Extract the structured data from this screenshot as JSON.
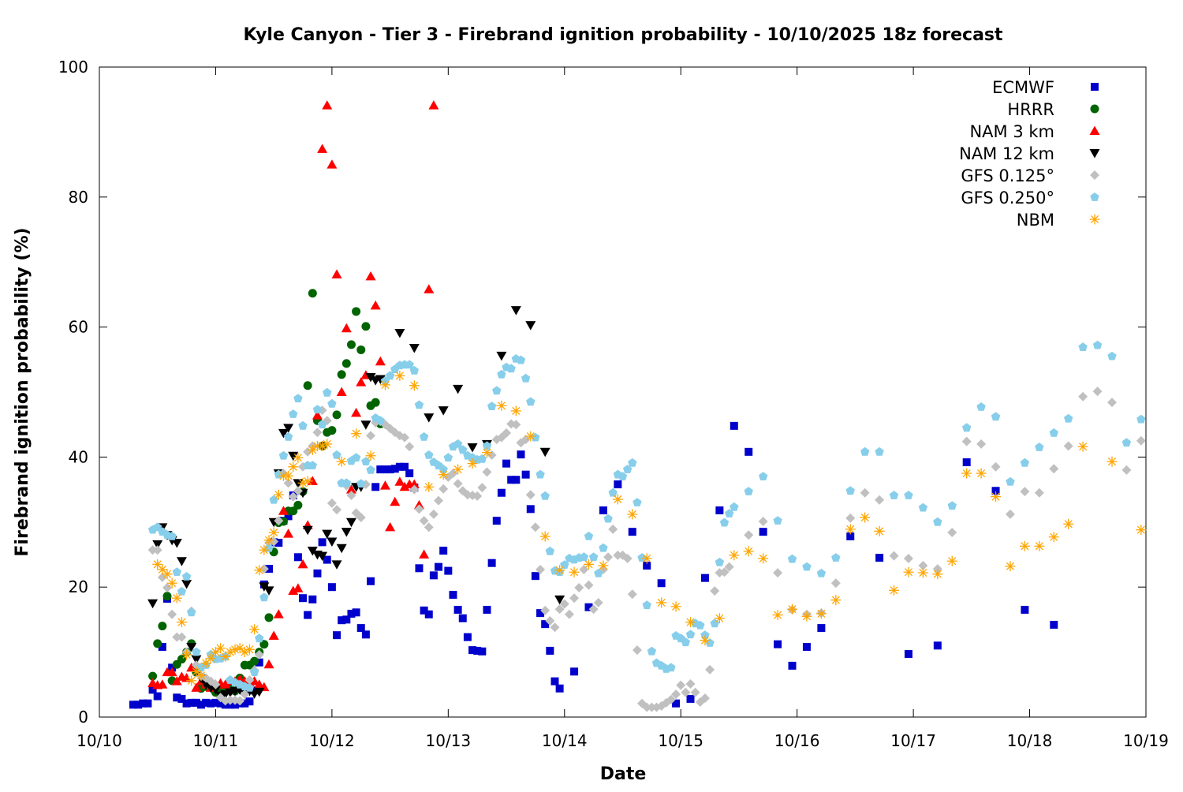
{
  "chart_data": {
    "type": "scatter",
    "title": "Kyle Canyon - Tier 3 - Firebrand ignition probability - 10/10/2025 18z forecast",
    "xlabel": "Date",
    "ylabel": "Firebrand ignition probability (%)",
    "x_units": "hours since 10/10 00",
    "xlim": [
      0,
      216
    ],
    "ylim": [
      0,
      100
    ],
    "x_ticks": [
      {
        "h": 0,
        "label": "10/10"
      },
      {
        "h": 24,
        "label": "10/11"
      },
      {
        "h": 48,
        "label": "10/12"
      },
      {
        "h": 72,
        "label": "10/13"
      },
      {
        "h": 96,
        "label": "10/14"
      },
      {
        "h": 120,
        "label": "10/15"
      },
      {
        "h": 144,
        "label": "10/16"
      },
      {
        "h": 168,
        "label": "10/17"
      },
      {
        "h": 192,
        "label": "10/18"
      },
      {
        "h": 216,
        "label": "10/19"
      }
    ],
    "y_ticks": [
      {
        "v": 0,
        "label": "0"
      },
      {
        "v": 20,
        "label": "20"
      },
      {
        "v": 40,
        "label": "40"
      },
      {
        "v": 60,
        "label": "60"
      },
      {
        "v": 80,
        "label": "80"
      },
      {
        "v": 100,
        "label": "100"
      }
    ],
    "grid": false,
    "legend_position": "top-right",
    "series": [
      {
        "name": "ECMWF",
        "marker": "square",
        "color": "#0000cc",
        "segments": [
          {
            "start": 7,
            "step": 1,
            "values": [
              1.9,
              1.9,
              2.1,
              2.1,
              4.2,
              3.2,
              10.8,
              18.2,
              7.6,
              3.0,
              2.8,
              2.1,
              2.2,
              2.2,
              1.9,
              2.2,
              2.1,
              2.2,
              2.1,
              1.9,
              1.9,
              1.9,
              2.1,
              2.1,
              2.4,
              4.1,
              8.4,
              20.4,
              22.8,
              26.9,
              26.8,
              30.2,
              30.9,
              34.1,
              24.6,
              18.3,
              15.7,
              18.1,
              22.1,
              26.9,
              24.2,
              20.0,
              12.6,
              14.9,
              15.0,
              15.9,
              16.1,
              13.7,
              12.7,
              20.9,
              35.4,
              38.1,
              38.1,
              38.1,
              38.2,
              38.5,
              38.5,
              37.5,
              35.3,
              22.9,
              16.4,
              15.8,
              21.8,
              23.1,
              25.6,
              22.5,
              18.8,
              16.5,
              15.2,
              12.3,
              10.3,
              10.2,
              10.1,
              16.5,
              23.7,
              30.2,
              34.5,
              39.0,
              36.5,
              36.5,
              40.4,
              37.3,
              32.0,
              21.7,
              16.0,
              14.3,
              10.2,
              5.5,
              4.4
            ]
          },
          {
            "start": 98,
            "step": 3,
            "values": [
              7.0,
              16.9,
              31.8,
              35.8,
              28.5,
              23.3,
              20.6,
              2.1,
              2.8,
              21.4,
              31.8,
              44.8,
              40.8,
              28.5,
              11.2,
              7.9,
              10.8,
              13.7
            ]
          },
          {
            "start": 155,
            "step": 6,
            "values": [
              27.8,
              24.5,
              9.7,
              11.0,
              39.2,
              34.8,
              16.5,
              14.2
            ]
          }
        ]
      },
      {
        "name": "HRRR",
        "marker": "circle",
        "color": "#006400",
        "segments": [
          {
            "start": 11,
            "step": 1,
            "values": [
              6.3,
              11.3,
              14.0,
              18.6,
              5.6,
              8.1,
              8.9,
              10.0,
              11.3,
              6.9,
              4.4,
              4.7,
              4.7,
              3.8,
              4.0,
              4.2,
              4.5,
              4.0,
              6.0,
              8.0,
              8.0,
              8.6,
              10.0,
              11.2,
              15.3,
              25.4,
              29.9,
              30.1,
              31.7,
              31.7,
              32.6,
              34.7,
              51.0,
              65.2,
              45.6,
              41.7,
              43.8,
              44.1,
              46.5,
              52.7,
              54.4,
              57.3,
              62.4,
              56.5,
              60.1,
              47.9,
              48.4,
              45.1
            ]
          }
        ]
      },
      {
        "name": "NAM 3 km",
        "marker": "triangle-up",
        "color": "#ff0000",
        "segments": [
          {
            "start": 11,
            "step": 1,
            "values": [
              5.2,
              4.9,
              5.0,
              6.9,
              6.9,
              5.5,
              6.2,
              6.0,
              7.6,
              4.5,
              5.5,
              5.0,
              4.5,
              5.0,
              5.2,
              5.0,
              5.5,
              5.5,
              5.8,
              5.5,
              5.2,
              5.5,
              5.0,
              4.6,
              8.1,
              12.5,
              15.8,
              31.7,
              28.2,
              19.4,
              19.8,
              23.5,
              29.5,
              36.3,
              46.4,
              87.4,
              94.1,
              85.0,
              68.1,
              50.0,
              59.8,
              35.0,
              46.8,
              51.5,
              52.6,
              67.8,
              63.3,
              54.7,
              35.6,
              29.2,
              33.1,
              36.2,
              35.4,
              35.8,
              35.8,
              32.6,
              25.0,
              65.8,
              94.1
            ]
          }
        ]
      },
      {
        "name": "NAM 12 km",
        "marker": "triangle-down",
        "color": "#000000",
        "segments": [
          {
            "start": 11,
            "step": 1,
            "values": [
              17.5,
              26.6,
              29.2,
              28.0,
              27.2,
              26.8,
              24.0,
              20.5,
              10.8,
              8.9,
              6.0,
              5.0,
              4.5,
              4.2,
              3.3,
              3.5,
              3.8,
              4.0,
              4.2,
              3.9,
              4.0,
              3.6,
              3.9,
              20.1,
              19.5,
              30.0,
              37.5,
              43.7,
              44.5,
              40.2,
              36.0,
              34.5,
              28.8,
              25.6,
              25.0,
              24.8,
              28.2,
              27.0,
              23.5,
              26.0,
              28.5,
              30.0,
              35.4,
              35.4,
              45.0,
              52.3,
              51.8,
              52.0
            ]
          },
          {
            "start": 62,
            "step": 3,
            "values": [
              59.1,
              56.8,
              46.1,
              47.2,
              50.5,
              41.5,
              42.0,
              55.6,
              62.6,
              60.3,
              40.8,
              18.1
            ]
          }
        ]
      },
      {
        "name": "GFS 0.125°",
        "marker": "diamond",
        "color": "#c0c0c0",
        "segments": [
          {
            "start": 11,
            "step": 1,
            "values": [
              25.7,
              25.7,
              21.5,
              19.9,
              15.8,
              12.3,
              12.3,
              10.0,
              16.3,
              8.0,
              6.3,
              6.0,
              5.5,
              5.0,
              3.0,
              2.5,
              2.6,
              2.6,
              2.5,
              3.5,
              5.7,
              7.2,
              9.6,
              22.8,
              26.8,
              27.0,
              30.2,
              37.5,
              36.0,
              33.9,
              34.8,
              38.5,
              40.8,
              41.7,
              43.8,
              47.2,
              45.6,
              32.9,
              31.9,
              36.0,
              35.6,
              34.1,
              31.4,
              30.7,
              35.8,
              43.3,
              45.3,
              45.5,
              45.0,
              44.4,
              43.8,
              43.3,
              43.0,
              41.6,
              35.0,
              32.0,
              30.2,
              29.2,
              31.2,
              33.3,
              35.1,
              36.9,
              37.5,
              35.9,
              34.8,
              34.2,
              34.1,
              34.0,
              35.3,
              37.7,
              40.3,
              42.7,
              43.0,
              43.7,
              45.1,
              45.0,
              42.2,
              42.7,
              34.2,
              29.2,
              22.7,
              16.4,
              14.8,
              13.8,
              16.6,
              17.4,
              15.8,
              18.3,
              19.9,
              22.7,
              20.3,
              16.6,
              17.6,
              22.7,
              24.6,
              28.9,
              24.9,
              24.9,
              24.4,
              18.9,
              10.3,
              2.1,
              1.5,
              1.5,
              1.5,
              1.7,
              2.2,
              2.7,
              3.5,
              4.9,
              3.8,
              5.1,
              3.8,
              2.3,
              2.9,
              7.3,
              19.4,
              22.2,
              22.3,
              23.1
            ]
          },
          {
            "start": 134,
            "step": 3,
            "values": [
              28.0,
              30.1,
              22.2,
              16.5,
              15.8,
              16.0,
              20.6,
              30.6,
              34.5,
              33.4,
              24.8,
              24.4,
              23.3,
              22.8,
              28.4,
              42.4,
              42.0,
              38.5,
              31.2,
              34.7,
              34.5,
              38.2,
              41.7,
              49.3,
              50.1,
              48.4,
              38.0,
              42.5
            ]
          }
        ]
      },
      {
        "name": "GFS 0.250°",
        "marker": "pentagon",
        "color": "#87ceeb",
        "segments": [
          {
            "start": 11,
            "step": 1,
            "values": [
              28.8,
              29.2,
              28.5,
              28.0,
              27.8,
              22.3,
              19.3,
              21.6,
              16.1,
              10.0,
              7.6,
              8.0,
              9.6,
              8.9,
              9.0,
              9.3,
              5.7,
              5.3,
              5.0,
              4.7,
              4.5,
              6.9,
              12.1,
              18.4,
              26.0,
              33.4,
              37.3,
              40.2,
              43.1,
              46.6,
              49.0,
              44.8,
              38.7,
              38.7,
              47.3,
              45.0,
              49.9,
              48.2,
              40.3,
              36.0,
              36.0,
              39.4,
              39.9,
              35.9,
              39.3,
              38.0,
              46.0,
              45.6,
              51.7,
              52.5,
              53.5,
              54.1,
              54.2,
              54.2,
              53.3,
              48.0,
              43.1,
              40.3,
              39.2,
              38.7,
              38.1,
              39.9,
              41.6,
              42.0,
              41.1,
              40.2,
              39.9,
              39.6,
              39.7,
              41.7,
              47.8,
              50.2,
              52.7,
              53.8,
              53.6,
              55.1,
              54.9,
              52.1,
              48.5,
              43.0,
              37.3,
              34.0,
              25.5,
              22.5,
              22.3,
              23.4,
              24.4,
              24.2,
              24.5,
              24.6,
              27.8,
              24.6,
              22.1,
              26.0,
              30.5,
              34.5,
              37.3,
              37.0,
              38.1,
              39.1,
              33.0,
              24.5,
              17.2,
              10.1,
              8.3,
              7.9,
              7.4,
              7.6,
              12.5,
              12.1,
              11.5,
              12.7,
              14.4,
              14.1,
              12.6,
              11.4,
              14.4,
              23.8,
              29.9,
              31.3,
              32.3
            ]
          },
          {
            "start": 134,
            "step": 3,
            "values": [
              34.7,
              37.0,
              30.2,
              24.3,
              23.1,
              22.1,
              24.5,
              34.8,
              40.8,
              40.8,
              34.1,
              34.1,
              32.2,
              30.0,
              32.5,
              44.5,
              47.7,
              46.2,
              36.2,
              39.1,
              41.5,
              43.7,
              45.9,
              56.9,
              57.2,
              55.5,
              42.2,
              45.8
            ]
          }
        ]
      },
      {
        "name": "NBM",
        "marker": "asterisk",
        "color": "#ffa500",
        "segments": [
          {
            "start": 12,
            "step": 1,
            "values": [
              23.5,
              22.7,
              22.0,
              20.6,
              18.3,
              14.6,
              9.6,
              5.6,
              7.0,
              6.4,
              8.3,
              9.0,
              10.0,
              10.6,
              9.3,
              10.0,
              10.4,
              10.6,
              10.0,
              10.4,
              13.5,
              22.6,
              25.7,
              27.2,
              28.4,
              34.2,
              37.1,
              37.1,
              38.5,
              39.9,
              36.0,
              36.3,
              41.1,
              41.7,
              41.7,
              42.0
            ]
          },
          {
            "start": 50,
            "step": 3,
            "values": [
              39.3,
              43.6,
              40.2,
              51.1,
              52.5,
              51.0,
              35.4,
              37.3,
              38.1,
              39.0,
              40.7,
              47.9,
              47.1,
              43.2,
              27.8,
              22.6,
              22.3,
              23.5,
              23.3,
              33.5,
              31.2,
              24.4,
              17.6,
              17.0,
              14.6,
              11.8,
              15.2,
              24.9,
              25.5,
              24.4,
              15.7,
              16.6,
              15.5,
              15.9,
              18.0,
              28.9,
              30.7,
              28.6,
              19.5,
              22.3,
              22.2,
              22.0,
              24.0,
              37.5,
              37.5,
              33.9,
              23.2,
              26.3,
              26.3,
              27.7,
              29.7,
              41.6,
              null,
              39.3,
              null,
              28.8
            ]
          }
        ]
      }
    ]
  }
}
